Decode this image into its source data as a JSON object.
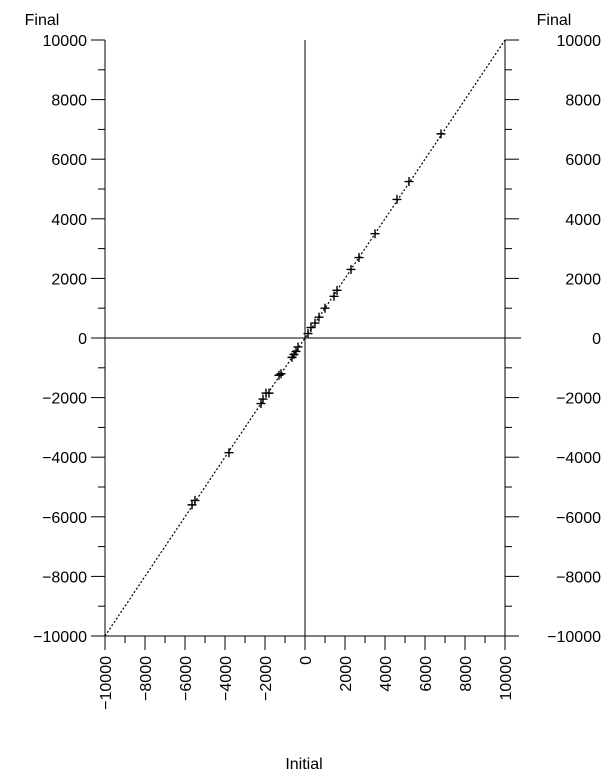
{
  "chart_data": {
    "type": "scatter",
    "title": "",
    "xlabel": "Initial",
    "ylabel": "Final",
    "ylabel_right": "Final",
    "xlim": [
      -10000,
      10000
    ],
    "ylim": [
      -10000,
      10000
    ],
    "xticks": [
      -10000,
      -8000,
      -6000,
      -4000,
      -2000,
      0,
      2000,
      4000,
      6000,
      8000,
      10000
    ],
    "yticks": [
      -10000,
      -8000,
      -6000,
      -4000,
      -2000,
      0,
      2000,
      4000,
      6000,
      8000,
      10000
    ],
    "reference_line": {
      "style": "dotted",
      "from": [
        -10000,
        -10000
      ],
      "to": [
        10000,
        10000
      ]
    },
    "marker": "plus",
    "grid": false,
    "points": [
      {
        "x": 6800,
        "y": 6850
      },
      {
        "x": 5200,
        "y": 5250
      },
      {
        "x": 4600,
        "y": 4650
      },
      {
        "x": 3500,
        "y": 3500
      },
      {
        "x": 2700,
        "y": 2700
      },
      {
        "x": 2300,
        "y": 2300
      },
      {
        "x": 1600,
        "y": 1600
      },
      {
        "x": 1450,
        "y": 1400
      },
      {
        "x": 1000,
        "y": 1000
      },
      {
        "x": 700,
        "y": 700
      },
      {
        "x": 500,
        "y": 500
      },
      {
        "x": 300,
        "y": 350
      },
      {
        "x": 150,
        "y": 150
      },
      {
        "x": -350,
        "y": -300
      },
      {
        "x": -450,
        "y": -450
      },
      {
        "x": -550,
        "y": -550
      },
      {
        "x": -650,
        "y": -650
      },
      {
        "x": -1200,
        "y": -1200
      },
      {
        "x": -1300,
        "y": -1250
      },
      {
        "x": -1800,
        "y": -1850
      },
      {
        "x": -1950,
        "y": -1850
      },
      {
        "x": -2100,
        "y": -2050
      },
      {
        "x": -2200,
        "y": -2200
      },
      {
        "x": -3800,
        "y": -3850
      },
      {
        "x": -5500,
        "y": -5450
      },
      {
        "x": -5650,
        "y": -5600
      }
    ]
  }
}
